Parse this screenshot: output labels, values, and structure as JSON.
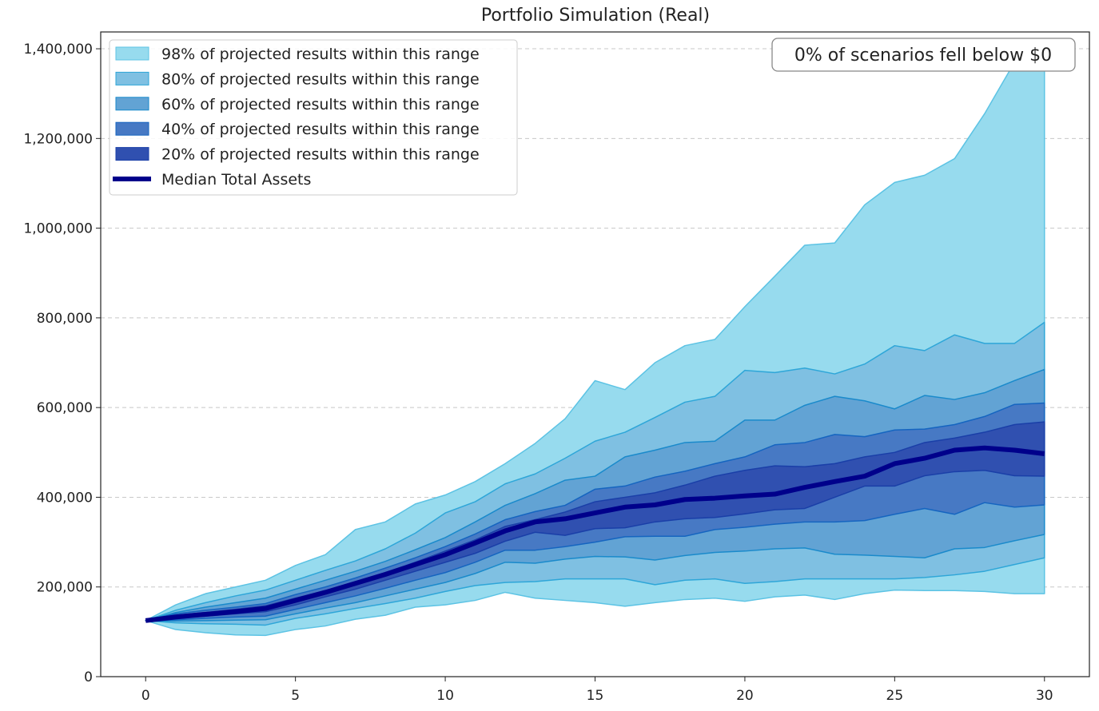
{
  "chart_data": {
    "type": "area",
    "title": "Portfolio Simulation (Real)",
    "xlabel": "",
    "ylabel": "",
    "xlim": [
      -1.5,
      31.5
    ],
    "ylim": [
      0,
      1437500
    ],
    "xticks": [
      0,
      5,
      10,
      15,
      20,
      25,
      30
    ],
    "xtick_labels": [
      "0",
      "5",
      "10",
      "15",
      "20",
      "25",
      "30"
    ],
    "yticks": [
      0,
      200000,
      400000,
      600000,
      800000,
      1000000,
      1200000,
      1400000
    ],
    "ytick_labels": [
      "0",
      "200,000",
      "400,000",
      "600,000",
      "800,000",
      "1,000,000",
      "1,200,000",
      "1,400,000"
    ],
    "grid": "y-dashed",
    "legend_position": "top-left",
    "annotation": "0% of scenarios fell below $0",
    "x": [
      0,
      1,
      2,
      3,
      4,
      5,
      6,
      7,
      8,
      9,
      10,
      11,
      12,
      13,
      14,
      15,
      16,
      17,
      18,
      19,
      20,
      21,
      22,
      23,
      24,
      25,
      26,
      27,
      28,
      29,
      30
    ],
    "bands": [
      {
        "name": "98% of projected results within this range",
        "color": "#97dbee",
        "edge": "#5cc3e4",
        "lower": [
          125000,
          105000,
          98000,
          93000,
          92000,
          105000,
          113000,
          128000,
          137000,
          155000,
          160000,
          170000,
          188000,
          175000,
          170000,
          165000,
          157000,
          165000,
          172000,
          175000,
          168000,
          178000,
          182000,
          172000,
          185000,
          193000,
          192000,
          192000,
          190000,
          185000,
          185000
        ],
        "upper": [
          125000,
          160000,
          185000,
          200000,
          215000,
          248000,
          272000,
          328000,
          345000,
          385000,
          405000,
          435000,
          475000,
          520000,
          575000,
          660000,
          640000,
          700000,
          738000,
          752000,
          825000,
          893000,
          962000,
          967000,
          1052000,
          1102000,
          1118000,
          1155000,
          1255000,
          1370000,
          1390000
        ]
      },
      {
        "name": "80% of projected results within this range",
        "color": "#7fc0e2",
        "edge": "#2ea6d8",
        "lower": [
          125000,
          120000,
          118000,
          117000,
          115000,
          130000,
          140000,
          152000,
          163000,
          175000,
          190000,
          203000,
          210000,
          212000,
          218000,
          218000,
          218000,
          205000,
          215000,
          218000,
          208000,
          212000,
          218000,
          218000,
          218000,
          218000,
          221000,
          227000,
          235000,
          250000,
          265000
        ],
        "upper": [
          125000,
          148000,
          165000,
          180000,
          193000,
          215000,
          237000,
          258000,
          285000,
          320000,
          365000,
          390000,
          430000,
          452000,
          487000,
          525000,
          545000,
          578000,
          612000,
          625000,
          683000,
          678000,
          688000,
          675000,
          697000,
          738000,
          727000,
          762000,
          743000,
          743000,
          790000
        ]
      },
      {
        "name": "60% of projected results within this range",
        "color": "#62a3d4",
        "edge": "#1a8acb",
        "lower": [
          125000,
          124000,
          125000,
          126000,
          127000,
          140000,
          153000,
          165000,
          180000,
          195000,
          210000,
          230000,
          255000,
          253000,
          262000,
          268000,
          267000,
          260000,
          270000,
          277000,
          280000,
          285000,
          287000,
          273000,
          271000,
          268000,
          265000,
          285000,
          288000,
          303000,
          317000
        ],
        "upper": [
          125000,
          143000,
          155000,
          165000,
          175000,
          195000,
          215000,
          235000,
          257000,
          283000,
          310000,
          345000,
          382000,
          408000,
          438000,
          447000,
          490000,
          505000,
          522000,
          525000,
          572000,
          572000,
          605000,
          625000,
          615000,
          597000,
          627000,
          618000,
          633000,
          660000,
          685000
        ]
      },
      {
        "name": "40% of projected results within this range",
        "color": "#4779c4",
        "edge": "#1565c0",
        "lower": [
          125000,
          127000,
          130000,
          133000,
          135000,
          150000,
          165000,
          180000,
          197000,
          215000,
          232000,
          255000,
          282000,
          282000,
          290000,
          300000,
          312000,
          313000,
          313000,
          328000,
          333000,
          340000,
          345000,
          345000,
          348000,
          362000,
          375000,
          362000,
          388000,
          378000,
          383000
        ],
        "upper": [
          125000,
          140000,
          148000,
          155000,
          163000,
          183000,
          200000,
          220000,
          242000,
          265000,
          290000,
          318000,
          350000,
          368000,
          382000,
          418000,
          425000,
          445000,
          458000,
          475000,
          490000,
          517000,
          522000,
          540000,
          535000,
          550000,
          552000,
          562000,
          580000,
          607000,
          610000
        ]
      },
      {
        "name": "20% of projected results within this range",
        "color": "#3050b0",
        "edge": "#1a3fa8",
        "lower": [
          125000,
          130000,
          135000,
          140000,
          145000,
          160000,
          178000,
          195000,
          215000,
          235000,
          255000,
          275000,
          302000,
          322000,
          315000,
          330000,
          332000,
          345000,
          352000,
          355000,
          363000,
          372000,
          375000,
          400000,
          425000,
          425000,
          448000,
          457000,
          460000,
          448000,
          447000
        ],
        "upper": [
          125000,
          137000,
          143000,
          150000,
          158000,
          175000,
          192000,
          210000,
          232000,
          255000,
          280000,
          305000,
          335000,
          350000,
          367000,
          390000,
          400000,
          410000,
          427000,
          447000,
          460000,
          470000,
          468000,
          475000,
          490000,
          500000,
          522000,
          532000,
          545000,
          562000,
          568000
        ]
      }
    ],
    "series": [
      {
        "name": "Median Total Assets",
        "color": "#00008b",
        "values": [
          125000,
          133000,
          139000,
          145000,
          152000,
          170000,
          188000,
          208000,
          228000,
          250000,
          272000,
          298000,
          325000,
          345000,
          352000,
          365000,
          378000,
          383000,
          395000,
          398000,
          403000,
          407000,
          422000,
          435000,
          447000,
          475000,
          487000,
          505000,
          510000,
          505000,
          497000
        ]
      }
    ]
  }
}
